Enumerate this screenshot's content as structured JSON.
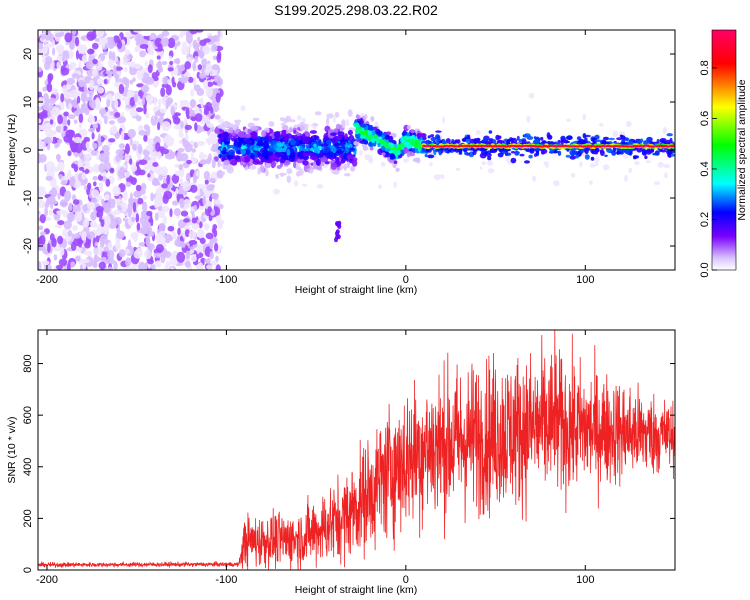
{
  "figure_title": "S199.2025.298.03.22.R02",
  "chart_data": [
    {
      "type": "heatmap",
      "title": "S199.2025.298.03.22.R02",
      "xlabel": "Height of straight line (km)",
      "ylabel": "Frequency (Hz)",
      "xlim": [
        -205,
        150
      ],
      "ylim": [
        -25,
        25
      ],
      "x_ticks": [
        -200,
        -100,
        0,
        100
      ],
      "x_tick_labels": [
        "-200",
        "-100",
        "0",
        "100"
      ],
      "y_ticks": [
        -20,
        -10,
        0,
        10,
        20
      ],
      "y_tick_labels": [
        "-20",
        "-10",
        "0",
        "10",
        "20"
      ],
      "colorbar": {
        "label": "Normalized spectral amplitude",
        "range": [
          0,
          0.95
        ],
        "ticks": [
          0.0,
          0.2,
          0.4,
          0.6,
          0.8
        ],
        "tick_labels": [
          "0.0",
          "0.2",
          "0.4",
          "0.6",
          "0.8"
        ],
        "colormap": [
          "#ffffff",
          "#c9a6ff",
          "#7a00ff",
          "#0000ff",
          "#00ffff",
          "#00ff00",
          "#ffff00",
          "#ff0000",
          "#ff0066"
        ]
      },
      "regions": [
        {
          "name": "noise",
          "x_range": [
            -205,
            -103
          ],
          "freq_range": [
            -25,
            25
          ],
          "amplitude": 0.05
        },
        {
          "name": "signal-onset",
          "x_range": [
            -103,
            -28
          ],
          "center_freq_hz": 0.5,
          "spread_hz": 2.5,
          "peak_amplitude": 0.3
        },
        {
          "name": "signal-transition",
          "x_range": [
            -28,
            10
          ],
          "freq_track_hz": [
            [
              -28,
              4.5
            ],
            [
              -20,
              3
            ],
            [
              -10,
              1
            ],
            [
              -5,
              -0.5
            ],
            [
              0,
              2
            ],
            [
              10,
              0.8
            ]
          ],
          "peak_amplitude": 0.5
        },
        {
          "name": "signal-steady",
          "x_range": [
            10,
            150
          ],
          "center_freq_hz": 0.8,
          "spread_hz": 0.8,
          "peak_amplitude": 0.95
        }
      ],
      "isolated_blob": {
        "x": -38,
        "freq_hz": -17,
        "amplitude": 0.15
      }
    },
    {
      "type": "line",
      "xlabel": "Height of straight line (km)",
      "ylabel": "SNR (10 * v/v)",
      "xlim": [
        -205,
        150
      ],
      "ylim": [
        0,
        930
      ],
      "x_ticks": [
        -200,
        -100,
        0,
        100
      ],
      "x_tick_labels": [
        "-200",
        "-100",
        "0",
        "100"
      ],
      "y_ticks": [
        0,
        200,
        400,
        600,
        800
      ],
      "y_tick_labels": [
        "0",
        "200",
        "400",
        "600",
        "800"
      ],
      "line_color": "#ee2222",
      "series_envelope": [
        {
          "x": -205,
          "mean": 20,
          "noise": 8
        },
        {
          "x": -93,
          "mean": 22,
          "noise": 8
        },
        {
          "x": -90,
          "mean": 110,
          "noise": 90
        },
        {
          "x": -60,
          "mean": 120,
          "noise": 100
        },
        {
          "x": -35,
          "mean": 200,
          "noise": 150
        },
        {
          "x": -20,
          "mean": 300,
          "noise": 200
        },
        {
          "x": -10,
          "mean": 380,
          "noise": 230
        },
        {
          "x": 10,
          "mean": 470,
          "noise": 260
        },
        {
          "x": 50,
          "mean": 530,
          "noise": 270
        },
        {
          "x": 80,
          "mean": 560,
          "noise": 260
        },
        {
          "x": 150,
          "mean": 520,
          "noise": 120
        }
      ],
      "peak": {
        "x": 83,
        "y": 935
      }
    }
  ]
}
